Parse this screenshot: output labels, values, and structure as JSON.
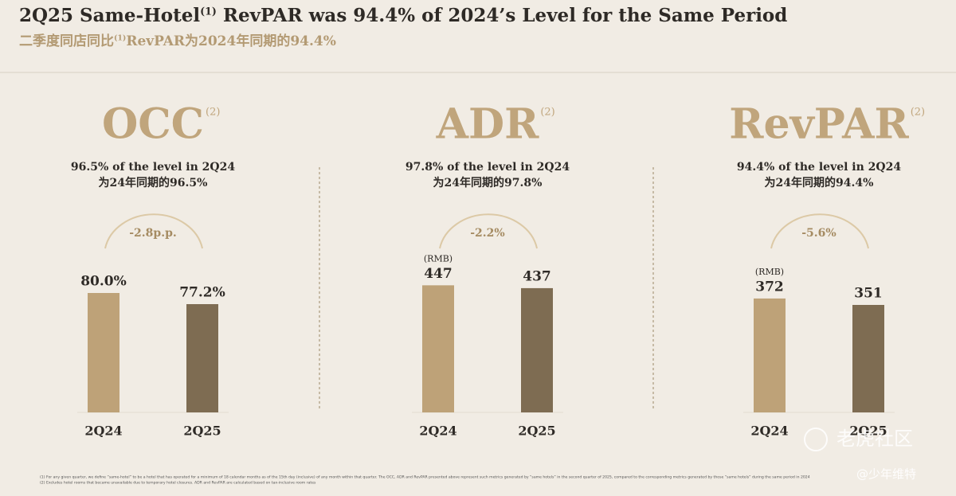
{
  "header": {
    "title": "2Q25 Same-Hotel",
    "title_note": "(1)",
    "title_rest": " RevPAR was 94.4% of 2024’s Level for the Same Period",
    "subtitle": "二季度同店同比",
    "subtitle_note": "(1)",
    "subtitle_rest": "RevPAR为2024年同期的94.4%"
  },
  "chart_data": [
    {
      "type": "bar",
      "title": "OCC",
      "title_note": "(2)",
      "subtitle": [
        "96.5% of the level in 2Q24",
        "为24年同期的96.5%"
      ],
      "annotation": "-2.8p.p.",
      "categories": [
        "2Q24",
        "2Q25"
      ],
      "values": [
        80.0,
        77.2
      ],
      "value_labels": [
        "80.0%",
        "77.2%"
      ],
      "colors": [
        "#bea278",
        "#7e6c52"
      ],
      "ylim": [
        50,
        90
      ]
    },
    {
      "type": "bar",
      "title": "ADR",
      "title_note": "(2)",
      "subtitle": [
        "97.8% of the level in 2Q24",
        "为24年同期的97.8%"
      ],
      "annotation": "-2.2%",
      "unit_label": "(RMB)",
      "categories": [
        "2Q24",
        "2Q25"
      ],
      "values": [
        447,
        437
      ],
      "colors": [
        "#bea278",
        "#7e6c52"
      ],
      "ylim": [
        0,
        560
      ]
    },
    {
      "type": "bar",
      "title": "RevPAR",
      "title_note": "(2)",
      "subtitle": [
        "94.4% of the level in 2Q24",
        "为24年同期的94.4%"
      ],
      "annotation": "-5.6%",
      "unit_label": "(RMB)",
      "categories": [
        "2Q24",
        "2Q25"
      ],
      "values": [
        372,
        351
      ],
      "colors": [
        "#bea278",
        "#7e6c52"
      ],
      "ylim": [
        0,
        520
      ]
    }
  ],
  "footnotes": [
    "(1)   For any given quarter, we define “same-hotel” to be a hotel that has operated for a minimum of 18 calendar months as of the 15th day (inclusive) of any month within that quarter. The OCC, ADR and RevPAR presented above represent such metrics generated by “same hotels” in the second quarter of 2025, compared to the corresponding metrics generated by those “same hotels” during the same period in 2024",
    "(2)   Excludes hotel rooms that became unavailable due to temporary hotel closures. ADR and RevPAR are calculated based on tax-inclusive room rates"
  ],
  "watermark": [
    "老虎社区",
    "@少年维特"
  ]
}
